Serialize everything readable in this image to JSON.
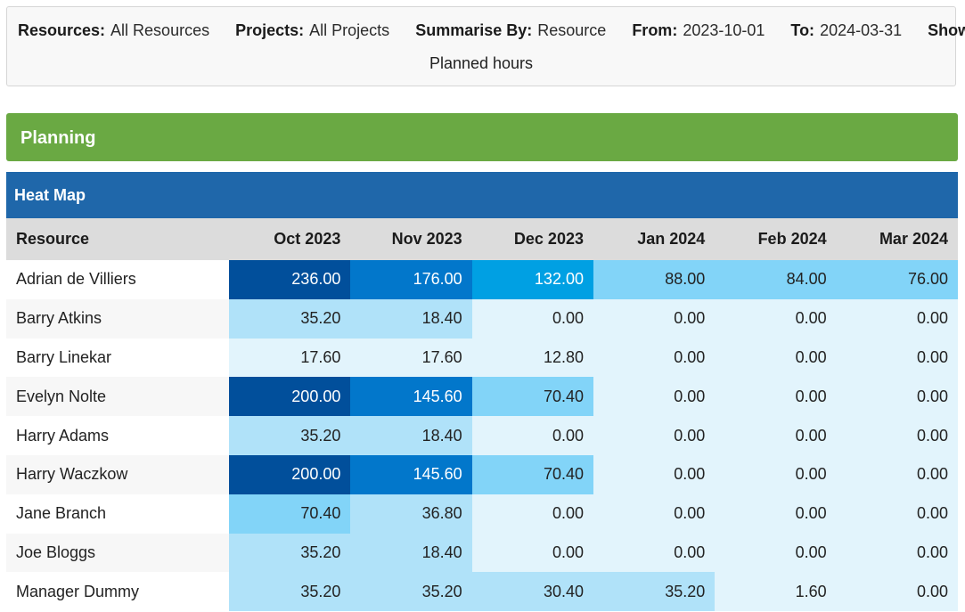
{
  "filters": {
    "resources_label": "Resources:",
    "resources_value": "All Resources",
    "projects_label": "Projects:",
    "projects_value": "All Projects",
    "summarise_label": "Summarise By:",
    "summarise_value": "Resource",
    "from_label": "From:",
    "from_value": "2023-10-01",
    "to_label": "To:",
    "to_value": "2024-03-31",
    "show_label": "Show:",
    "show_value": "Planned hours"
  },
  "planning": {
    "title": "Planning",
    "color": "#6aa943"
  },
  "heatmap": {
    "title": "Heat Map",
    "header_color": "#1f67aa",
    "columns": [
      "Resource",
      "Oct 2023",
      "Nov 2023",
      "Dec 2023",
      "Jan 2024",
      "Feb 2024",
      "Mar 2024"
    ],
    "rows": [
      {
        "name": "Adrian de Villiers",
        "values": [
          "236.00",
          "176.00",
          "132.00",
          "88.00",
          "84.00",
          "76.00"
        ]
      },
      {
        "name": "Barry Atkins",
        "values": [
          "35.20",
          "18.40",
          "0.00",
          "0.00",
          "0.00",
          "0.00"
        ]
      },
      {
        "name": "Barry Linekar",
        "values": [
          "17.60",
          "17.60",
          "12.80",
          "0.00",
          "0.00",
          "0.00"
        ]
      },
      {
        "name": "Evelyn Nolte",
        "values": [
          "200.00",
          "145.60",
          "70.40",
          "0.00",
          "0.00",
          "0.00"
        ]
      },
      {
        "name": "Harry Adams",
        "values": [
          "35.20",
          "18.40",
          "0.00",
          "0.00",
          "0.00",
          "0.00"
        ]
      },
      {
        "name": "Harry Waczkow",
        "values": [
          "200.00",
          "145.60",
          "70.40",
          "0.00",
          "0.00",
          "0.00"
        ]
      },
      {
        "name": "Jane Branch",
        "values": [
          "70.40",
          "36.80",
          "0.00",
          "0.00",
          "0.00",
          "0.00"
        ]
      },
      {
        "name": "Joe Bloggs",
        "values": [
          "35.20",
          "18.40",
          "0.00",
          "0.00",
          "0.00",
          "0.00"
        ]
      },
      {
        "name": "Manager Dummy",
        "values": [
          "35.20",
          "35.20",
          "30.40",
          "35.20",
          "1.60",
          "0.00"
        ]
      }
    ],
    "scale_colors": [
      "#e2f4fc",
      "#b0e2f9",
      "#82d4f8",
      "#00a0e3",
      "#0277cb",
      "#014f9b"
    ]
  }
}
